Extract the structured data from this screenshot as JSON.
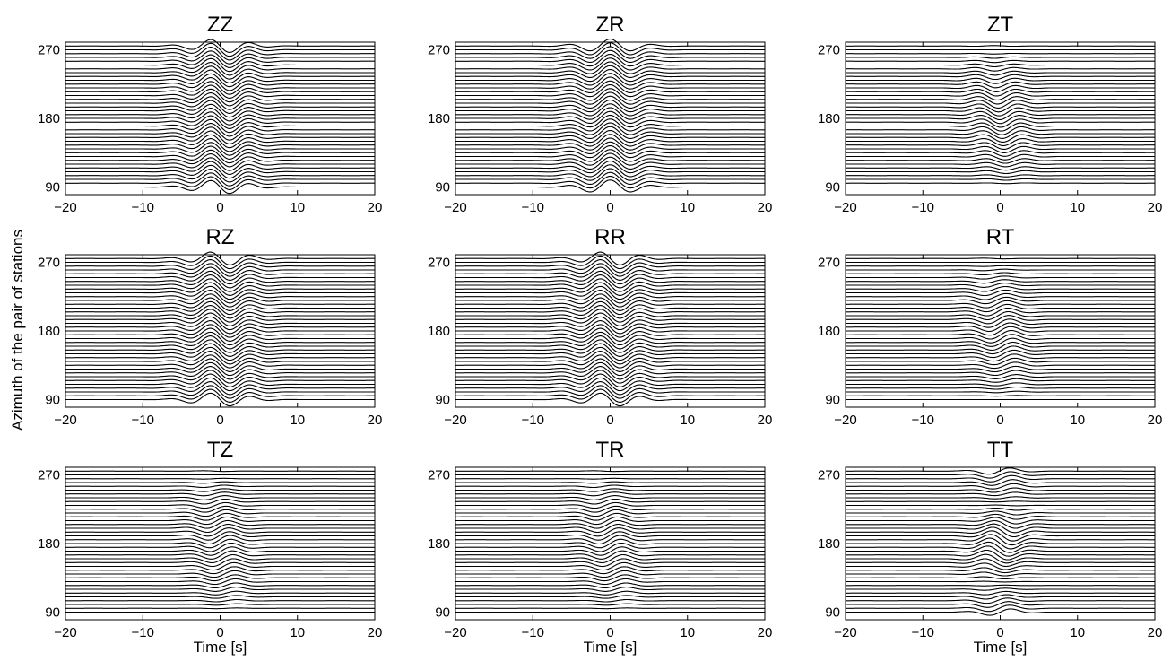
{
  "chart_data": {
    "type": "line",
    "figure_ylabel": "Azimuth of the pair of stations",
    "xlim": [
      -20,
      20
    ],
    "ylim": [
      80,
      280
    ],
    "xticks": [
      -20,
      -10,
      0,
      10,
      20
    ],
    "yticks": [
      90,
      180,
      270
    ],
    "trace_azimuths": {
      "start": 90,
      "end": 275,
      "step": 5
    },
    "panels": [
      {
        "title": "ZZ",
        "xlabel": "",
        "waveform": {
          "center": 0.0,
          "sigma": 3.2,
          "period": 5.2,
          "phase": 1.5708,
          "amp_base": 0.35,
          "amp_mod": [
            1.0,
            0.0,
            0.0
          ],
          "amp_pos": [
            0.85,
            0.0,
            0.0
          ]
        }
      },
      {
        "title": "ZR",
        "xlabel": "",
        "waveform": {
          "center": 0.0,
          "sigma": 3.2,
          "period": 5.6,
          "phase": 0.0,
          "amp_base": 0.35,
          "amp_mod": [
            1.0,
            0.0,
            0.0
          ],
          "amp_pos": [
            0.85,
            0.0,
            0.0
          ]
        }
      },
      {
        "title": "ZT",
        "xlabel": "",
        "waveform": {
          "center": 0.0,
          "sigma": 2.6,
          "period": 5.6,
          "phase": 0.0,
          "amp_base": 0.0,
          "amp_mod": [
            0.0,
            1.0,
            0.0
          ],
          "amp_pos": [
            0.0,
            0.8,
            0.0
          ]
        }
      },
      {
        "title": "RZ",
        "xlabel": "",
        "waveform": {
          "center": 0.0,
          "sigma": 3.2,
          "period": 5.4,
          "phase": 1.5708,
          "amp_base": 0.35,
          "amp_mod": [
            1.0,
            0.0,
            0.0
          ],
          "amp_pos": [
            0.85,
            0.0,
            0.0
          ]
        }
      },
      {
        "title": "RR",
        "xlabel": "",
        "waveform": {
          "center": 0.0,
          "sigma": 3.2,
          "period": 5.4,
          "phase": 1.5708,
          "amp_base": 0.35,
          "amp_mod": [
            1.0,
            0.0,
            0.0
          ],
          "amp_pos": [
            0.85,
            0.0,
            0.0
          ]
        }
      },
      {
        "title": "RT",
        "xlabel": "",
        "waveform": {
          "center": 0.0,
          "sigma": 2.4,
          "period": 6.4,
          "phase": 1.5708,
          "amp_base": 0.0,
          "amp_mod": [
            0.0,
            1.0,
            0.0
          ],
          "amp_pos": [
            0.0,
            0.85,
            0.0
          ]
        }
      },
      {
        "title": "TZ",
        "xlabel": "Time [s]",
        "waveform": {
          "center": 0.0,
          "sigma": 2.4,
          "period": 6.4,
          "phase": 1.5708,
          "amp_base": 0.0,
          "amp_mod": [
            0.0,
            1.0,
            0.0
          ],
          "amp_pos": [
            0.0,
            0.85,
            0.0
          ]
        }
      },
      {
        "title": "TR",
        "xlabel": "Time [s]",
        "waveform": {
          "center": 0.0,
          "sigma": 2.4,
          "period": 6.4,
          "phase": 1.5708,
          "amp_base": 0.0,
          "amp_mod": [
            0.0,
            1.0,
            0.0
          ],
          "amp_pos": [
            0.0,
            0.85,
            0.0
          ]
        }
      },
      {
        "title": "TT",
        "xlabel": "Time [s]",
        "waveform": {
          "center": 0.0,
          "sigma": 2.4,
          "period": 6.4,
          "phase": 1.5708,
          "amp_base": 0.25,
          "amp_mod": [
            0.0,
            0.0,
            1.0
          ],
          "amp_pos": [
            0.0,
            0.0,
            0.8
          ]
        }
      }
    ]
  }
}
